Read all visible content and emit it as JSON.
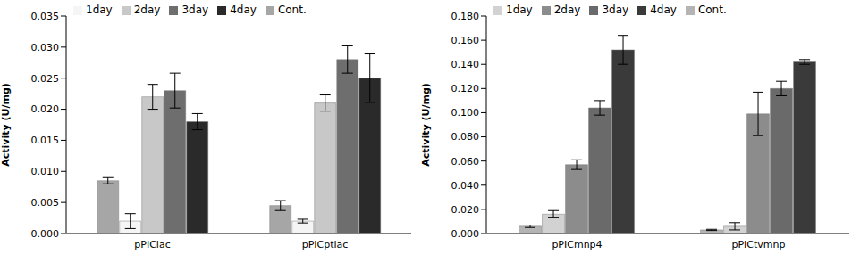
{
  "chart_data": [
    {
      "type": "bar",
      "y_label": "Activity (U/mg)",
      "categories": [
        "pPIClac",
        "pPICptlac"
      ],
      "series": [
        {
          "name": "Cont.",
          "color": "#a6a6a6",
          "values": [
            0.0085,
            0.0045
          ],
          "errors": [
            0.0005,
            0.0008
          ]
        },
        {
          "name": "1day",
          "color": "#f5f5f5",
          "values": [
            0.002,
            0.002
          ],
          "errors": [
            0.0012,
            0.0003
          ]
        },
        {
          "name": "2day",
          "color": "#c8c8c8",
          "values": [
            0.022,
            0.021
          ],
          "errors": [
            0.002,
            0.0013
          ]
        },
        {
          "name": "3day",
          "color": "#6e6e6e",
          "values": [
            0.023,
            0.028
          ],
          "errors": [
            0.0028,
            0.0022
          ]
        },
        {
          "name": "4day",
          "color": "#2a2a2a",
          "values": [
            0.018,
            0.025
          ],
          "errors": [
            0.0013,
            0.0039
          ]
        }
      ],
      "ylim": [
        0,
        0.035
      ],
      "yticks": [
        {
          "value": 0,
          "label": "0.000"
        },
        {
          "value": 0.005,
          "label": "0.005"
        },
        {
          "value": 0.01,
          "label": "0.010"
        },
        {
          "value": 0.015,
          "label": "0.015"
        },
        {
          "value": 0.02,
          "label": "0.020"
        },
        {
          "value": 0.025,
          "label": "0.025"
        },
        {
          "value": 0.03,
          "label": "0.030"
        },
        {
          "value": 0.035,
          "label": "0.035"
        }
      ],
      "grid": false,
      "legend": "top-left"
    },
    {
      "type": "bar",
      "y_label": "Activity (U/mg)",
      "categories": [
        "pPICmnp4",
        "pPICtvmnp"
      ],
      "series": [
        {
          "name": "Cont.",
          "color": "#b4b4b4",
          "values": [
            0.006,
            0.003
          ],
          "errors": [
            0.001,
            0.0005
          ]
        },
        {
          "name": "1day",
          "color": "#d2d2d2",
          "values": [
            0.016,
            0.006
          ],
          "errors": [
            0.003,
            0.003
          ]
        },
        {
          "name": "2day",
          "color": "#8c8c8c",
          "values": [
            0.057,
            0.099
          ],
          "errors": [
            0.004,
            0.018
          ]
        },
        {
          "name": "3day",
          "color": "#6a6a6a",
          "values": [
            0.104,
            0.12
          ],
          "errors": [
            0.006,
            0.006
          ]
        },
        {
          "name": "4day",
          "color": "#3a3a3a",
          "values": [
            0.152,
            0.142
          ],
          "errors": [
            0.012,
            0.002
          ]
        }
      ],
      "ylim": [
        0,
        0.18
      ],
      "yticks": [
        {
          "value": 0,
          "label": "0.000"
        },
        {
          "value": 0.02,
          "label": "0.020"
        },
        {
          "value": 0.04,
          "label": "0.040"
        },
        {
          "value": 0.06,
          "label": "0.060"
        },
        {
          "value": 0.08,
          "label": "0.080"
        },
        {
          "value": 0.1,
          "label": "0.100"
        },
        {
          "value": 0.12,
          "label": "0.120"
        },
        {
          "value": 0.14,
          "label": "0.140"
        },
        {
          "value": 0.16,
          "label": "0.160"
        },
        {
          "value": 0.18,
          "label": "0.180"
        }
      ],
      "grid": false,
      "legend": "top-left"
    }
  ]
}
